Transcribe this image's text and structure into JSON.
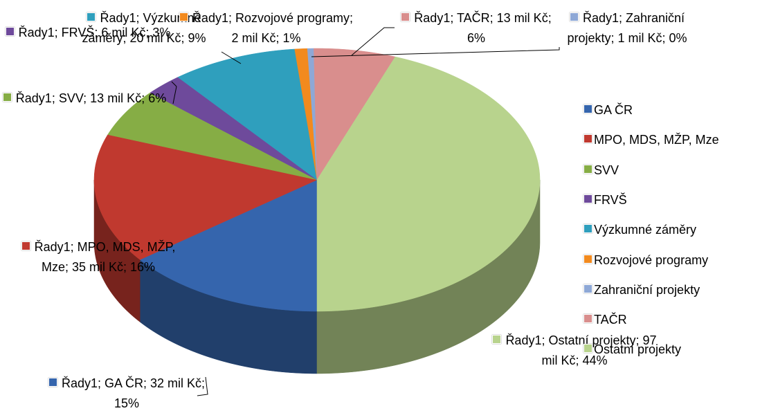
{
  "chart_data": {
    "type": "pie",
    "series_name": "Řady1",
    "categories": [
      "GA ČR",
      "MPO, MDS, MŽP, Mze",
      "SVV",
      "FRVŠ",
      "Výzkumné záměry",
      "Rozvojové programy",
      "Zahraniční projekty",
      "TAČR",
      "Ostatní projekty"
    ],
    "values": [
      32,
      35,
      13,
      6,
      20,
      2,
      1,
      13,
      97
    ],
    "value_labels": [
      "Řady1; GA ČR; 32 mil Kč; 15%",
      "Řady1; MPO, MDS, MŽP, Mze; 35 mil Kč; 16%",
      "Řady1; SVV; 13 mil Kč; 6%",
      "Řady1; FRVŠ; 6 mil Kč; 3%",
      "Řady1; Výzkumné záměry; 20 mil Kč; 9%",
      "Řady1; Rozvojové programy; 2 mil Kč; 1%",
      "Řady1; Zahraniční projekty; 1 mil Kč; 0%",
      "Řady1; TAČR; 13 mil Kč; 6%",
      "Řady1; Ostatní projekty; 97 mil Kč; 44%"
    ],
    "colors": [
      "#3565ad",
      "#c0392f",
      "#86ad45",
      "#6e4a9b",
      "#2f9fbd",
      "#f28a1e",
      "#8ea8d6",
      "#d98e8d",
      "#b8d38d"
    ],
    "legend": "right"
  }
}
